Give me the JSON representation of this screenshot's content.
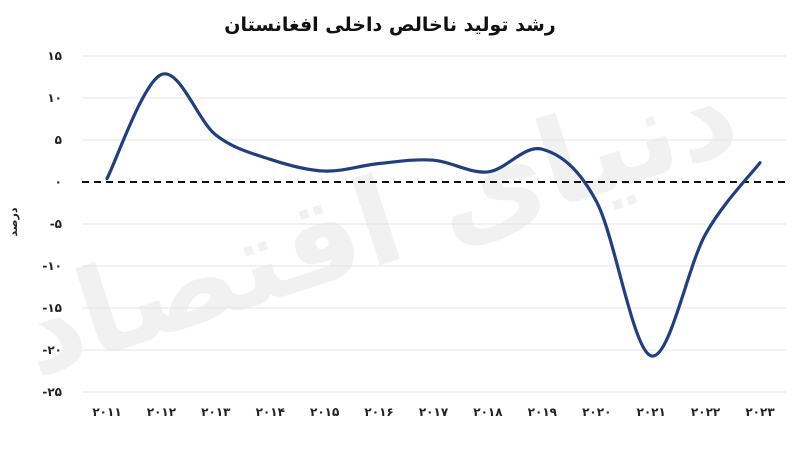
{
  "chart_data": {
    "type": "line",
    "title": "رشد تولید ناخالص داخلی افغانستان",
    "ylabel": "درصد",
    "xlabel": "",
    "categories": [
      "۲۰۱۱",
      "۲۰۱۲",
      "۲۰۱۳",
      "۲۰۱۴",
      "۲۰۱۵",
      "۲۰۱۶",
      "۲۰۱۷",
      "۲۰۱۸",
      "۲۰۱۹",
      "۲۰۲۰",
      "۲۰۲۱",
      "۲۰۲۲",
      "۲۰۲۳"
    ],
    "series": [
      {
        "values": [
          0.4,
          12.8,
          5.6,
          2.7,
          1.3,
          2.2,
          2.6,
          1.2,
          3.9,
          -2.4,
          -20.7,
          -6.2,
          2.3
        ]
      }
    ],
    "ylim": [
      -25,
      15
    ],
    "yticks": [
      15,
      10,
      5,
      0,
      -5,
      -10,
      -15,
      -20,
      -25
    ],
    "ytick_labels": [
      "۱۵",
      "۱۰",
      "۵",
      "۰",
      "-۵",
      "-۱۰",
      "-۱۵",
      "-۲۰",
      "-۲۵"
    ],
    "grid": true,
    "reference_line": {
      "y": 0,
      "style": "dashed"
    },
    "colors": {
      "series": "#1f3f7f",
      "zero_line": "#111111",
      "grid": "#e4e4e4"
    },
    "watermark": "دنیای اقتصاد"
  }
}
